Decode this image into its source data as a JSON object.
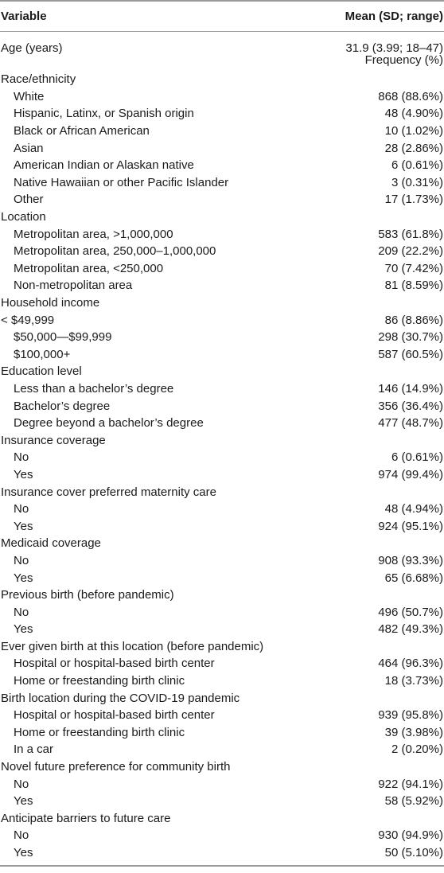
{
  "header": {
    "variable": "Variable",
    "mean": "Mean (SD; range)"
  },
  "age": {
    "label": "Age (years)",
    "value": "31.9 (3.99; 18–47)"
  },
  "frequency_label": "Frequency (%)",
  "rows": [
    {
      "type": "group",
      "label": "Race/ethnicity",
      "value": ""
    },
    {
      "type": "item",
      "label": "White",
      "value": "868 (88.6%)"
    },
    {
      "type": "item",
      "label": "Hispanic, Latinx, or Spanish origin",
      "value": "48 (4.90%)"
    },
    {
      "type": "item",
      "label": "Black or African American",
      "value": "10 (1.02%)"
    },
    {
      "type": "item",
      "label": "Asian",
      "value": "28 (2.86%)"
    },
    {
      "type": "item",
      "label": "American Indian or Alaskan native",
      "value": "6 (0.61%)"
    },
    {
      "type": "item",
      "label": "Native Hawaiian or other Pacific Islander",
      "value": "3 (0.31%)"
    },
    {
      "type": "item",
      "label": "Other",
      "value": "17 (1.73%)"
    },
    {
      "type": "group",
      "label": "Location",
      "value": ""
    },
    {
      "type": "item",
      "label": "Metropolitan area, >1,000,000",
      "value": "583 (61.8%)"
    },
    {
      "type": "item",
      "label": "Metropolitan area, 250,000–1,000,000",
      "value": "209 (22.2%)"
    },
    {
      "type": "item",
      "label": "Metropolitan area, <250,000",
      "value": "70 (7.42%)"
    },
    {
      "type": "item",
      "label": "Non-metropolitan area",
      "value": "81 (8.59%)"
    },
    {
      "type": "group",
      "label": "Household income",
      "value": ""
    },
    {
      "type": "group",
      "label": "< $49,999",
      "value": "86 (8.86%)"
    },
    {
      "type": "item",
      "label": "$50,000—$99,999",
      "value": "298 (30.7%)"
    },
    {
      "type": "item",
      "label": "$100,000+",
      "value": "587 (60.5%)"
    },
    {
      "type": "group",
      "label": "Education level",
      "value": ""
    },
    {
      "type": "item",
      "label": "Less than a bachelor’s degree",
      "value": "146 (14.9%)"
    },
    {
      "type": "item",
      "label": "Bachelor’s degree",
      "value": "356 (36.4%)"
    },
    {
      "type": "item",
      "label": "Degree beyond a bachelor’s degree",
      "value": "477 (48.7%)"
    },
    {
      "type": "group",
      "label": "Insurance coverage",
      "value": ""
    },
    {
      "type": "item",
      "label": "No",
      "value": "6 (0.61%)"
    },
    {
      "type": "item",
      "label": "Yes",
      "value": "974 (99.4%)"
    },
    {
      "type": "group",
      "label": "Insurance cover preferred maternity care",
      "value": ""
    },
    {
      "type": "item",
      "label": "No",
      "value": "48 (4.94%)"
    },
    {
      "type": "item",
      "label": "Yes",
      "value": "924 (95.1%)"
    },
    {
      "type": "group",
      "label": "Medicaid coverage",
      "value": ""
    },
    {
      "type": "item",
      "label": "No",
      "value": "908 (93.3%)"
    },
    {
      "type": "item",
      "label": "Yes",
      "value": "65 (6.68%)"
    },
    {
      "type": "group",
      "label": "Previous birth (before pandemic)",
      "value": ""
    },
    {
      "type": "item",
      "label": "No",
      "value": "496 (50.7%)"
    },
    {
      "type": "item",
      "label": "Yes",
      "value": "482 (49.3%)"
    },
    {
      "type": "group",
      "label": "Ever given birth at this location (before pandemic)",
      "value": ""
    },
    {
      "type": "item",
      "label": "Hospital or hospital-based birth center",
      "value": "464 (96.3%)"
    },
    {
      "type": "item",
      "label": "Home or freestanding birth clinic",
      "value": "18 (3.73%)"
    },
    {
      "type": "group",
      "label": "Birth location during the COVID-19 pandemic",
      "value": ""
    },
    {
      "type": "item",
      "label": "Hospital or hospital-based birth center",
      "value": "939 (95.8%)"
    },
    {
      "type": "item",
      "label": "Home or freestanding birth clinic",
      "value": "39 (3.98%)"
    },
    {
      "type": "item",
      "label": "In a car",
      "value": "2 (0.20%)"
    },
    {
      "type": "group",
      "label": "Novel future preference for community birth",
      "value": ""
    },
    {
      "type": "item",
      "label": "No",
      "value": "922 (94.1%)"
    },
    {
      "type": "item",
      "label": "Yes",
      "value": "58 (5.92%)"
    },
    {
      "type": "group",
      "label": "Anticipate barriers to future care",
      "value": ""
    },
    {
      "type": "item",
      "label": "No",
      "value": "930 (94.9%)"
    },
    {
      "type": "item",
      "label": "Yes",
      "value": "50 (5.10%)"
    }
  ]
}
